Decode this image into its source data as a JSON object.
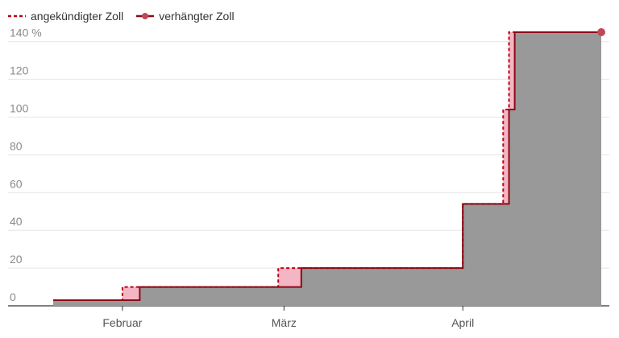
{
  "legend": {
    "announced_label": "angekündigter Zoll",
    "imposed_label": "verhängter Zoll"
  },
  "colors": {
    "announced": "#c0001a",
    "imposed": "#8a0a14",
    "imposed_fill": "#999999",
    "gap_fill": "#f4b6c4",
    "grid": "#e5e5e5",
    "end_dot": "#c0485a"
  },
  "chart_data": {
    "type": "area",
    "ylim": [
      0,
      145
    ],
    "y_unit_suffix": " %",
    "y_ticks": [
      0,
      20,
      40,
      60,
      80,
      100,
      120,
      140
    ],
    "xlim": [
      "2025-01-20",
      "2025-04-25"
    ],
    "x_ticks": [
      {
        "date": "2025-02-01",
        "label": "Februar"
      },
      {
        "date": "2025-03-01",
        "label": "März"
      },
      {
        "date": "2025-04-01",
        "label": "April"
      }
    ],
    "series": [
      {
        "name": "angekündigter Zoll",
        "style": "dashed-step",
        "points": [
          {
            "x": "2025-01-20",
            "y": 3
          },
          {
            "x": "2025-02-01",
            "y": 10
          },
          {
            "x": "2025-02-28",
            "y": 20
          },
          {
            "x": "2025-04-01",
            "y": 54
          },
          {
            "x": "2025-04-08",
            "y": 104
          },
          {
            "x": "2025-04-09",
            "y": 145
          },
          {
            "x": "2025-04-25",
            "y": 145
          }
        ]
      },
      {
        "name": "verhängter Zoll",
        "style": "solid-step-area",
        "points": [
          {
            "x": "2025-01-20",
            "y": 3
          },
          {
            "x": "2025-02-04",
            "y": 10
          },
          {
            "x": "2025-03-04",
            "y": 20
          },
          {
            "x": "2025-04-01",
            "y": 54
          },
          {
            "x": "2025-04-09",
            "y": 104
          },
          {
            "x": "2025-04-10",
            "y": 145
          },
          {
            "x": "2025-04-25",
            "y": 145
          }
        ]
      }
    ]
  }
}
